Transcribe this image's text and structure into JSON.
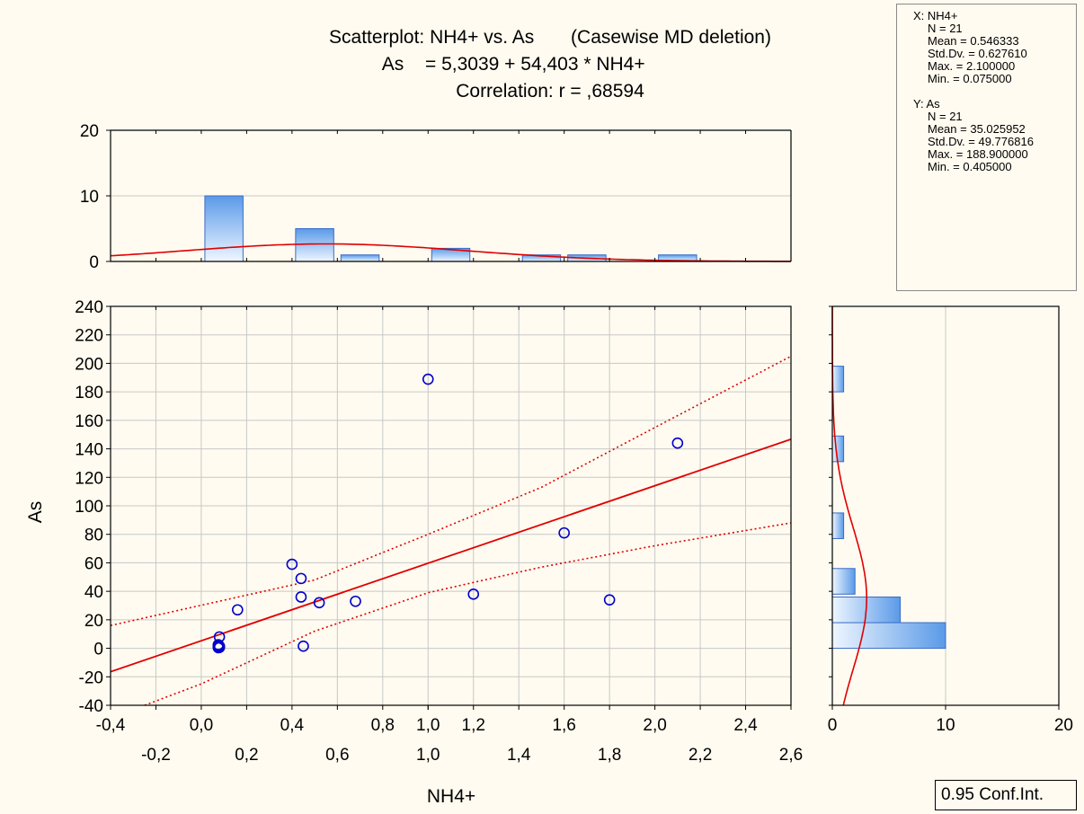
{
  "title": {
    "line1": "Scatterplot: NH4+ vs. As       (Casewise MD deletion)",
    "line2_left": "As",
    "line2_right": "= 5,3039 + 54,403 * NH4+",
    "line3": "Correlation: r = ,68594"
  },
  "stats": {
    "x_header": "X:  NH4+",
    "x_n": "N = 21",
    "x_mean": "Mean = 0.546333",
    "x_sd": "Std.Dv. = 0.627610",
    "x_max": "Max. = 2.100000",
    "x_min": "Min. = 0.075000",
    "y_header": "Y:  As",
    "y_n": "N = 21",
    "y_mean": "Mean = 35.025952",
    "y_sd": "Std.Dv. = 49.776816",
    "y_max": "Max. = 188.900000",
    "y_min": "Min. = 0.405000"
  },
  "conf_label": "0.95 Conf.Int.",
  "colors": {
    "background": "#fffbf0",
    "points": "#0000cc",
    "fit_line": "#e00000",
    "bar_fill_dark": "#6aa6ee",
    "bar_fill_light": "#eef6ff",
    "bar_stroke": "#3a6cc8",
    "grid": "#c8c8c8"
  },
  "chart_data": [
    {
      "type": "scatter",
      "xlabel": "NH4+",
      "ylabel": "As",
      "xlim": [
        -0.4,
        2.6
      ],
      "ylim": [
        -40,
        240
      ],
      "x_ticks_upper": [
        "-0,4",
        "0,0",
        "0,4",
        "0,8",
        "1,0",
        "1,2",
        "1,6",
        "2,0",
        "2,4"
      ],
      "x_ticks_lower": [
        "-0,2",
        "0,2",
        "0,6",
        "1,0",
        "1,4",
        "1,8",
        "2,2",
        "2,6"
      ],
      "x_ticks_upper_values": [
        -0.4,
        0.0,
        0.4,
        0.8,
        1.0,
        1.2,
        1.6,
        2.0,
        2.4
      ],
      "x_ticks_lower_values": [
        -0.2,
        0.2,
        0.6,
        1.0,
        1.4,
        1.8,
        2.2,
        2.6
      ],
      "y_ticks": [
        -40,
        -20,
        0,
        20,
        40,
        60,
        80,
        100,
        120,
        140,
        160,
        180,
        200,
        220,
        240
      ],
      "grid": true,
      "points": [
        {
          "x": 1.0,
          "y": 188.9
        },
        {
          "x": 2.1,
          "y": 144
        },
        {
          "x": 1.6,
          "y": 81
        },
        {
          "x": 0.4,
          "y": 59
        },
        {
          "x": 0.44,
          "y": 49
        },
        {
          "x": 1.2,
          "y": 38
        },
        {
          "x": 0.44,
          "y": 36
        },
        {
          "x": 1.8,
          "y": 34
        },
        {
          "x": 0.68,
          "y": 33
        },
        {
          "x": 0.52,
          "y": 32
        },
        {
          "x": 0.16,
          "y": 27
        },
        {
          "x": 0.08,
          "y": 8
        },
        {
          "x": 0.075,
          "y": 2.5
        },
        {
          "x": 0.075,
          "y": 2
        },
        {
          "x": 0.08,
          "y": 1.5
        },
        {
          "x": 0.075,
          "y": 1.2
        },
        {
          "x": 0.08,
          "y": 1
        },
        {
          "x": 0.075,
          "y": 0.8
        },
        {
          "x": 0.08,
          "y": 0.6
        },
        {
          "x": 0.075,
          "y": 0.405
        },
        {
          "x": 0.45,
          "y": 1.5
        }
      ],
      "fit": {
        "intercept": 5.3039,
        "slope": 54.403
      },
      "conf_upper": [
        {
          "x": -0.4,
          "y": 16
        },
        {
          "x": 0.5,
          "y": 48
        },
        {
          "x": 1.0,
          "y": 80
        },
        {
          "x": 1.5,
          "y": 113
        },
        {
          "x": 2.0,
          "y": 155
        },
        {
          "x": 2.6,
          "y": 205
        }
      ],
      "conf_lower": [
        {
          "x": -0.4,
          "y": -49
        },
        {
          "x": 0.0,
          "y": -25
        },
        {
          "x": 0.5,
          "y": 12
        },
        {
          "x": 1.0,
          "y": 39
        },
        {
          "x": 1.5,
          "y": 57
        },
        {
          "x": 2.0,
          "y": 72
        },
        {
          "x": 2.6,
          "y": 88
        }
      ]
    },
    {
      "type": "bar",
      "name": "histogram-x",
      "xlim": [
        -0.4,
        2.6
      ],
      "ylim": [
        0,
        20
      ],
      "y_ticks": [
        0,
        10,
        20
      ],
      "bins": [
        {
          "start": 0.0,
          "end": 0.2,
          "count": 10
        },
        {
          "start": 0.2,
          "end": 0.4,
          "count": 0
        },
        {
          "start": 0.4,
          "end": 0.6,
          "count": 5
        },
        {
          "start": 0.6,
          "end": 0.8,
          "count": 1
        },
        {
          "start": 0.8,
          "end": 1.0,
          "count": 0
        },
        {
          "start": 1.0,
          "end": 1.2,
          "count": 2
        },
        {
          "start": 1.2,
          "end": 1.4,
          "count": 0
        },
        {
          "start": 1.4,
          "end": 1.6,
          "count": 1
        },
        {
          "start": 1.6,
          "end": 1.8,
          "count": 1
        },
        {
          "start": 1.8,
          "end": 2.0,
          "count": 0
        },
        {
          "start": 2.0,
          "end": 2.2,
          "count": 1
        }
      ],
      "normal_curve": {
        "mean": 0.546333,
        "sd": 0.62761,
        "n": 21,
        "bin_width": 0.2
      }
    },
    {
      "type": "bar",
      "name": "histogram-y",
      "orientation": "horizontal",
      "ylim": [
        -40,
        240
      ],
      "xlim": [
        0,
        20
      ],
      "x_ticks": [
        0,
        10,
        20
      ],
      "bins": [
        {
          "start": 0,
          "end": 18,
          "count": 10
        },
        {
          "start": 18,
          "end": 36,
          "count": 6
        },
        {
          "start": 38,
          "end": 56,
          "count": 2
        },
        {
          "start": 77,
          "end": 95,
          "count": 1
        },
        {
          "start": 131,
          "end": 149,
          "count": 1
        },
        {
          "start": 180,
          "end": 198,
          "count": 1
        }
      ],
      "normal_curve": {
        "mean": 35.025952,
        "sd": 49.776816,
        "n": 21,
        "bin_width": 18
      }
    }
  ]
}
